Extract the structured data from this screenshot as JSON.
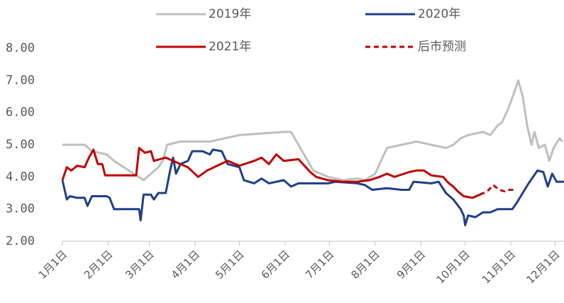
{
  "chart_data": {
    "type": "line",
    "ylim": [
      2,
      8
    ],
    "yticks": [
      {
        "value": 2,
        "label": "2.00"
      },
      {
        "value": 3,
        "label": "3.00"
      },
      {
        "value": 4,
        "label": "4.00"
      },
      {
        "value": 5,
        "label": "5.00"
      },
      {
        "value": 6,
        "label": "6.00"
      },
      {
        "value": 7,
        "label": "7.00"
      },
      {
        "value": 8,
        "label": "8.00"
      }
    ],
    "xlim": [
      0,
      340
    ],
    "xticks": [
      {
        "value": 0,
        "label": "1月1日"
      },
      {
        "value": 31,
        "label": "2月1日"
      },
      {
        "value": 59,
        "label": "3月1日"
      },
      {
        "value": 90,
        "label": "4月1日"
      },
      {
        "value": 120,
        "label": "5月1日"
      },
      {
        "value": 151,
        "label": "6月1日"
      },
      {
        "value": 181,
        "label": "7月1日"
      },
      {
        "value": 212,
        "label": "8月1日"
      },
      {
        "value": 243,
        "label": "9月1日"
      },
      {
        "value": 273,
        "label": "10月1日"
      },
      {
        "value": 304,
        "label": "11月1日"
      },
      {
        "value": 334,
        "label": "12月1日"
      }
    ],
    "series": [
      {
        "name": "2019年",
        "color": "#bfbfbf",
        "dash": false,
        "x": [
          0,
          15,
          20,
          30,
          35,
          45,
          55,
          60,
          65,
          68,
          71,
          80,
          100,
          120,
          150,
          155,
          165,
          170,
          180,
          190,
          200,
          205,
          212,
          220,
          230,
          240,
          250,
          260,
          265,
          270,
          275,
          285,
          290,
          295,
          298,
          302,
          306,
          309,
          312,
          315,
          318,
          320,
          323,
          327,
          330,
          333,
          337,
          339
        ],
        "values": [
          5.0,
          5.0,
          4.8,
          4.7,
          4.5,
          4.2,
          3.9,
          4.1,
          4.3,
          4.5,
          5.0,
          5.1,
          5.1,
          5.3,
          5.4,
          5.4,
          4.6,
          4.2,
          4.0,
          3.9,
          3.95,
          3.9,
          4.1,
          4.9,
          5.0,
          5.1,
          5.0,
          4.9,
          5.0,
          5.2,
          5.3,
          5.4,
          5.3,
          5.6,
          5.7,
          6.1,
          6.6,
          7.0,
          6.5,
          5.6,
          5.0,
          5.4,
          4.9,
          5.0,
          4.5,
          4.9,
          5.2,
          5.1
        ]
      },
      {
        "name": "2020年",
        "color": "#1f3f87",
        "dash": false,
        "x": [
          0,
          3,
          5,
          10,
          15,
          17,
          20,
          30,
          32,
          35,
          52,
          53,
          55,
          60,
          62,
          65,
          70,
          73,
          75,
          77,
          80,
          85,
          88,
          95,
          100,
          102,
          108,
          112,
          120,
          123,
          130,
          135,
          140,
          150,
          155,
          160,
          175,
          180,
          185,
          200,
          205,
          210,
          220,
          230,
          235,
          238,
          250,
          255,
          260,
          265,
          270,
          272,
          273,
          275,
          280,
          285,
          290,
          295,
          305,
          308,
          312,
          316,
          322,
          326,
          329,
          332,
          335,
          340
        ],
        "values": [
          3.9,
          3.3,
          3.4,
          3.35,
          3.35,
          3.1,
          3.4,
          3.4,
          3.35,
          3.0,
          3.0,
          2.65,
          3.45,
          3.45,
          3.3,
          3.5,
          3.5,
          4.2,
          4.6,
          4.1,
          4.4,
          4.5,
          4.8,
          4.8,
          4.7,
          4.85,
          4.8,
          4.4,
          4.3,
          3.9,
          3.8,
          3.95,
          3.8,
          3.9,
          3.7,
          3.8,
          3.8,
          3.8,
          3.85,
          3.8,
          3.75,
          3.6,
          3.65,
          3.6,
          3.6,
          3.85,
          3.8,
          3.85,
          3.5,
          3.3,
          3.0,
          2.8,
          2.5,
          2.8,
          2.75,
          2.9,
          2.9,
          3.0,
          3.0,
          3.2,
          3.5,
          3.8,
          4.2,
          4.15,
          3.7,
          4.1,
          3.85,
          3.85
        ]
      },
      {
        "name": "2021年",
        "color": "#c00000",
        "dash": false,
        "x": [
          0,
          3,
          6,
          10,
          15,
          18,
          21,
          24,
          27,
          29,
          50,
          52,
          56,
          60,
          62,
          70,
          75,
          80,
          85,
          92,
          98,
          105,
          112,
          120,
          130,
          135,
          140,
          145,
          150,
          160,
          165,
          168,
          172,
          180,
          190,
          200,
          208,
          215,
          220,
          225,
          235,
          240,
          245,
          250,
          258,
          262,
          265,
          268,
          272,
          278,
          283
        ],
        "values": [
          3.9,
          4.3,
          4.2,
          4.35,
          4.3,
          4.6,
          4.85,
          4.4,
          4.4,
          4.05,
          4.05,
          4.9,
          4.75,
          4.8,
          4.5,
          4.6,
          4.5,
          4.4,
          4.3,
          4.0,
          4.2,
          4.35,
          4.5,
          4.35,
          4.5,
          4.6,
          4.4,
          4.7,
          4.5,
          4.55,
          4.3,
          4.15,
          4.0,
          3.9,
          3.85,
          3.85,
          3.9,
          4.0,
          4.1,
          4.0,
          4.15,
          4.2,
          4.2,
          4.05,
          4.0,
          3.8,
          3.7,
          3.55,
          3.4,
          3.35,
          3.45
        ]
      },
      {
        "name": "后市预测",
        "color": "#c00000",
        "dash": true,
        "x": [
          283,
          288,
          292,
          296,
          300,
          303,
          307
        ],
        "values": [
          3.45,
          3.55,
          3.75,
          3.6,
          3.55,
          3.6,
          3.6
        ]
      }
    ]
  }
}
